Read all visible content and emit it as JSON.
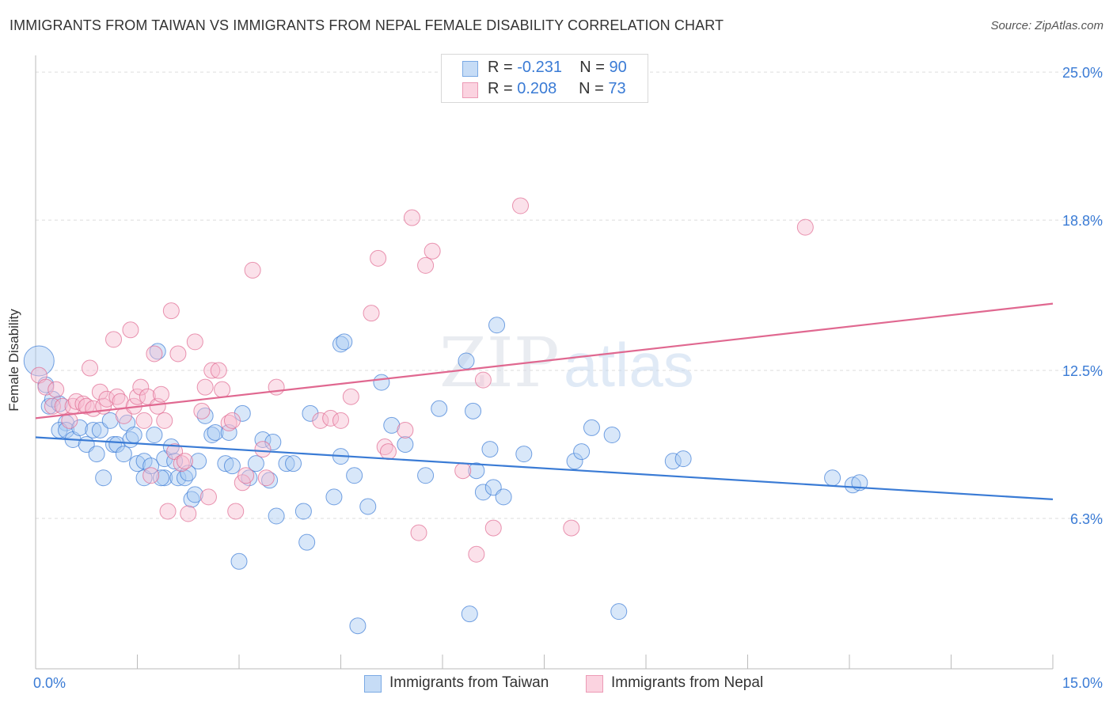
{
  "title": "IMMIGRANTS FROM TAIWAN VS IMMIGRANTS FROM NEPAL FEMALE DISABILITY CORRELATION CHART",
  "source": "Source: ZipAtlas.com",
  "watermark": {
    "zip": "ZIP",
    "atlas": "atlas"
  },
  "legend_top": {
    "rows": [
      {
        "r_label": "R = ",
        "r_value": "-0.231",
        "n_label": "N = ",
        "n_value": "90",
        "color": "#9dc3f0"
      },
      {
        "r_label": "R = ",
        "r_value": "0.208",
        "n_label": "N = ",
        "n_value": "73",
        "color": "#f7b8cc"
      }
    ]
  },
  "chart_data": {
    "type": "scatter",
    "title": "IMMIGRANTS FROM TAIWAN VS IMMIGRANTS FROM NEPAL FEMALE DISABILITY CORRELATION CHART",
    "xlabel": "",
    "ylabel": "Female Disability",
    "xlim": [
      0,
      15
    ],
    "ylim": [
      0,
      25.7
    ],
    "x_tick_labels": [
      "0.0%",
      "15.0%"
    ],
    "y_tick_values": [
      6.3,
      12.5,
      18.8,
      25.0
    ],
    "y_tick_labels": [
      "6.3%",
      "12.5%",
      "18.8%",
      "25.0%"
    ],
    "grid": true,
    "legend_position": "bottom",
    "series": [
      {
        "name": "Immigrants from Taiwan",
        "color": "#3a7bd5",
        "fill": "#a9c9f2",
        "trend": {
          "x": [
            0,
            15
          ],
          "y": [
            9.7,
            7.1
          ]
        },
        "points": [
          [
            0.05,
            12.9
          ],
          [
            0.15,
            11.9
          ],
          [
            0.2,
            11.0
          ],
          [
            0.25,
            11.3
          ],
          [
            0.35,
            11.1
          ],
          [
            0.45,
            10.3
          ],
          [
            0.35,
            10.0
          ],
          [
            0.45,
            10.0
          ],
          [
            0.55,
            9.6
          ],
          [
            0.65,
            10.1
          ],
          [
            0.75,
            9.4
          ],
          [
            0.85,
            10.0
          ],
          [
            0.9,
            9.0
          ],
          [
            0.95,
            10.0
          ],
          [
            1.0,
            8.0
          ],
          [
            1.1,
            10.4
          ],
          [
            1.15,
            9.4
          ],
          [
            1.2,
            9.4
          ],
          [
            1.3,
            9.0
          ],
          [
            1.35,
            10.3
          ],
          [
            1.4,
            9.6
          ],
          [
            1.45,
            9.8
          ],
          [
            1.5,
            8.6
          ],
          [
            1.6,
            8.7
          ],
          [
            1.6,
            8.0
          ],
          [
            1.7,
            8.5
          ],
          [
            1.75,
            9.8
          ],
          [
            1.8,
            13.3
          ],
          [
            1.9,
            8.8
          ],
          [
            1.9,
            8.0
          ],
          [
            2.0,
            9.3
          ],
          [
            2.05,
            8.7
          ],
          [
            2.1,
            8.0
          ],
          [
            2.2,
            8.0
          ],
          [
            2.25,
            8.2
          ],
          [
            2.3,
            7.1
          ],
          [
            2.35,
            7.3
          ],
          [
            2.4,
            8.7
          ],
          [
            2.5,
            10.6
          ],
          [
            2.6,
            9.8
          ],
          [
            2.65,
            9.9
          ],
          [
            2.8,
            8.6
          ],
          [
            2.9,
            8.5
          ],
          [
            3.0,
            4.5
          ],
          [
            3.05,
            10.7
          ],
          [
            3.15,
            8.0
          ],
          [
            3.25,
            8.6
          ],
          [
            3.35,
            9.6
          ],
          [
            3.45,
            7.9
          ],
          [
            3.5,
            9.5
          ],
          [
            3.55,
            6.4
          ],
          [
            3.7,
            8.6
          ],
          [
            3.8,
            8.6
          ],
          [
            3.95,
            6.6
          ],
          [
            4.0,
            5.3
          ],
          [
            4.05,
            10.7
          ],
          [
            4.4,
            7.2
          ],
          [
            4.5,
            8.9
          ],
          [
            4.5,
            13.6
          ],
          [
            4.55,
            13.7
          ],
          [
            4.7,
            8.1
          ],
          [
            4.75,
            1.8
          ],
          [
            4.9,
            6.8
          ],
          [
            5.1,
            12.0
          ],
          [
            5.25,
            10.2
          ],
          [
            5.45,
            9.4
          ],
          [
            5.75,
            8.1
          ],
          [
            5.95,
            10.9
          ],
          [
            6.35,
            12.9
          ],
          [
            6.4,
            2.3
          ],
          [
            6.45,
            10.8
          ],
          [
            6.5,
            8.3
          ],
          [
            6.6,
            7.4
          ],
          [
            6.7,
            9.2
          ],
          [
            6.75,
            7.6
          ],
          [
            6.8,
            14.4
          ],
          [
            6.9,
            7.2
          ],
          [
            7.2,
            9.0
          ],
          [
            7.95,
            8.7
          ],
          [
            8.05,
            9.1
          ],
          [
            8.2,
            10.1
          ],
          [
            8.5,
            9.8
          ],
          [
            9.4,
            8.7
          ],
          [
            9.55,
            8.8
          ],
          [
            11.75,
            8.0
          ],
          [
            12.05,
            7.7
          ],
          [
            12.15,
            7.8
          ],
          [
            8.6,
            2.4
          ],
          [
            1.85,
            8.0
          ],
          [
            2.85,
            9.9
          ]
        ]
      },
      {
        "name": "Immigrants from Nepal",
        "color": "#e06890",
        "fill": "#f7bcd0",
        "trend": {
          "x": [
            0,
            15
          ],
          "y": [
            10.5,
            15.3
          ]
        },
        "points": [
          [
            0.05,
            12.3
          ],
          [
            0.15,
            11.8
          ],
          [
            0.25,
            11.0
          ],
          [
            0.3,
            11.7
          ],
          [
            0.4,
            11.0
          ],
          [
            0.5,
            10.4
          ],
          [
            0.55,
            11.0
          ],
          [
            0.6,
            11.2
          ],
          [
            0.7,
            11.1
          ],
          [
            0.75,
            11.0
          ],
          [
            0.8,
            12.6
          ],
          [
            0.85,
            10.9
          ],
          [
            0.95,
            11.6
          ],
          [
            1.0,
            11.0
          ],
          [
            1.05,
            11.3
          ],
          [
            1.15,
            13.8
          ],
          [
            1.2,
            11.4
          ],
          [
            1.25,
            11.2
          ],
          [
            1.3,
            10.6
          ],
          [
            1.4,
            14.2
          ],
          [
            1.45,
            11.0
          ],
          [
            1.5,
            11.4
          ],
          [
            1.55,
            11.8
          ],
          [
            1.6,
            10.4
          ],
          [
            1.65,
            11.4
          ],
          [
            1.7,
            8.1
          ],
          [
            1.75,
            13.2
          ],
          [
            1.8,
            11.0
          ],
          [
            1.85,
            11.5
          ],
          [
            1.9,
            10.4
          ],
          [
            1.95,
            6.6
          ],
          [
            2.0,
            15.0
          ],
          [
            2.05,
            9.1
          ],
          [
            2.1,
            13.2
          ],
          [
            2.15,
            8.6
          ],
          [
            2.2,
            8.7
          ],
          [
            2.25,
            6.5
          ],
          [
            2.35,
            13.7
          ],
          [
            2.45,
            10.8
          ],
          [
            2.5,
            11.8
          ],
          [
            2.55,
            7.2
          ],
          [
            2.6,
            12.5
          ],
          [
            2.7,
            12.5
          ],
          [
            2.75,
            11.7
          ],
          [
            2.85,
            10.3
          ],
          [
            2.9,
            10.4
          ],
          [
            2.95,
            6.6
          ],
          [
            3.05,
            7.8
          ],
          [
            3.1,
            8.1
          ],
          [
            3.2,
            16.7
          ],
          [
            3.35,
            9.2
          ],
          [
            3.4,
            8.0
          ],
          [
            3.55,
            11.8
          ],
          [
            4.2,
            10.4
          ],
          [
            4.35,
            10.5
          ],
          [
            4.5,
            10.4
          ],
          [
            4.65,
            11.4
          ],
          [
            4.95,
            14.9
          ],
          [
            5.05,
            17.2
          ],
          [
            5.15,
            9.3
          ],
          [
            5.2,
            9.1
          ],
          [
            5.45,
            10.0
          ],
          [
            5.55,
            18.9
          ],
          [
            5.65,
            5.7
          ],
          [
            5.75,
            16.9
          ],
          [
            5.85,
            17.5
          ],
          [
            6.3,
            8.3
          ],
          [
            6.5,
            4.8
          ],
          [
            6.6,
            12.1
          ],
          [
            6.75,
            5.9
          ],
          [
            7.15,
            19.4
          ],
          [
            7.9,
            5.9
          ],
          [
            11.35,
            18.5
          ]
        ]
      }
    ]
  },
  "bottom_legend": [
    {
      "label": "Immigrants from Taiwan",
      "fill": "#a9c9f2",
      "stroke": "#3a7bd5"
    },
    {
      "label": "Immigrants from Nepal",
      "fill": "#f7bcd0",
      "stroke": "#e06890"
    }
  ]
}
